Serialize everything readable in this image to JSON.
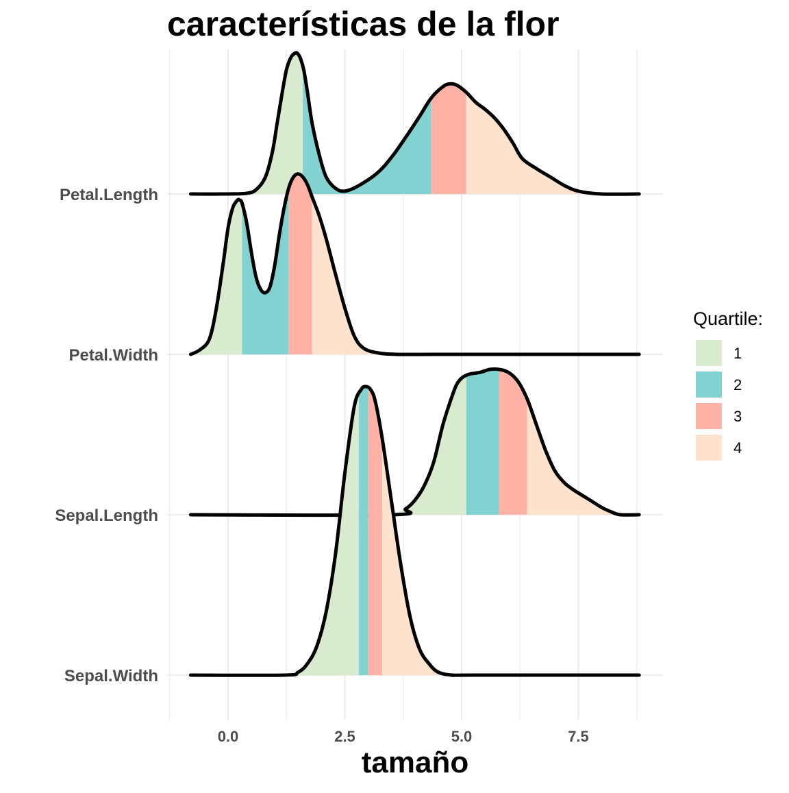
{
  "chart_data": {
    "type": "area",
    "subtype": "ridgeline density with quartile fills",
    "title": "características de la flor",
    "xlabel": "tamaño",
    "ylabel": "",
    "xlim": [
      -1.0,
      8.8
    ],
    "x_ticks": [
      0.0,
      2.5,
      5.0,
      7.5
    ],
    "x_tick_labels": [
      "0.0",
      "2.5",
      "5.0",
      "7.5"
    ],
    "grid": true,
    "legend": {
      "title": "Quartile:",
      "position": "right",
      "entries": [
        {
          "label": "1",
          "color": "#d9ebce"
        },
        {
          "label": "2",
          "color": "#83d2d2"
        },
        {
          "label": "3",
          "color": "#ffb3a7"
        },
        {
          "label": "4",
          "color": "#fde3ce"
        }
      ]
    },
    "series": [
      {
        "name": "Petal.Length",
        "quartiles": [
          1.6,
          4.35,
          5.1
        ],
        "x": [
          -0.8,
          0.0,
          0.4,
          0.6,
          0.8,
          0.95,
          1.05,
          1.15,
          1.25,
          1.35,
          1.45,
          1.5,
          1.55,
          1.62,
          1.7,
          1.8,
          1.95,
          2.1,
          2.3,
          2.5,
          2.8,
          3.2,
          3.5,
          3.8,
          4.1,
          4.35,
          4.6,
          4.75,
          4.9,
          5.1,
          5.3,
          5.5,
          5.7,
          5.9,
          6.1,
          6.3,
          6.6,
          6.9,
          7.2,
          7.5,
          8.0,
          8.8
        ],
        "density": [
          0.0,
          0.0,
          0.005,
          0.03,
          0.12,
          0.3,
          0.5,
          0.7,
          0.88,
          0.97,
          1.0,
          0.99,
          0.96,
          0.88,
          0.72,
          0.5,
          0.28,
          0.12,
          0.04,
          0.02,
          0.06,
          0.15,
          0.26,
          0.4,
          0.55,
          0.68,
          0.76,
          0.78,
          0.77,
          0.72,
          0.65,
          0.6,
          0.54,
          0.46,
          0.36,
          0.25,
          0.18,
          0.12,
          0.06,
          0.02,
          0.0,
          0.0
        ]
      },
      {
        "name": "Petal.Width",
        "quartiles": [
          0.3,
          1.3,
          1.8
        ],
        "x": [
          -0.8,
          -0.6,
          -0.4,
          -0.25,
          -0.1,
          0.0,
          0.1,
          0.2,
          0.25,
          0.3,
          0.4,
          0.5,
          0.6,
          0.7,
          0.8,
          0.9,
          1.0,
          1.1,
          1.2,
          1.3,
          1.4,
          1.5,
          1.6,
          1.7,
          1.8,
          1.95,
          2.1,
          2.3,
          2.5,
          2.7,
          2.9,
          3.2,
          3.6,
          4.5,
          6.0,
          8.8
        ],
        "density": [
          0.0,
          0.03,
          0.1,
          0.3,
          0.6,
          0.82,
          0.95,
          1.0,
          1.0,
          0.98,
          0.85,
          0.66,
          0.5,
          0.42,
          0.4,
          0.44,
          0.58,
          0.78,
          0.95,
          1.08,
          1.15,
          1.17,
          1.15,
          1.1,
          1.02,
          0.9,
          0.75,
          0.52,
          0.3,
          0.12,
          0.04,
          0.01,
          0.0,
          0.0,
          0.0,
          0.0
        ]
      },
      {
        "name": "Sepal.Length",
        "quartiles": [
          5.1,
          5.8,
          6.4
        ],
        "x": [
          -0.8,
          3.5,
          3.8,
          4.0,
          4.2,
          4.4,
          4.6,
          4.8,
          4.9,
          5.0,
          5.1,
          5.2,
          5.4,
          5.6,
          5.8,
          6.0,
          6.2,
          6.4,
          6.6,
          6.8,
          7.0,
          7.2,
          7.4,
          7.6,
          7.8,
          8.0,
          8.2,
          8.4,
          8.8
        ],
        "density": [
          0.0,
          0.0,
          0.04,
          0.1,
          0.2,
          0.36,
          0.62,
          0.82,
          0.9,
          0.94,
          0.96,
          0.97,
          0.98,
          1.0,
          1.0,
          0.98,
          0.92,
          0.8,
          0.62,
          0.44,
          0.3,
          0.22,
          0.17,
          0.13,
          0.09,
          0.05,
          0.02,
          0.0,
          0.0
        ]
      },
      {
        "name": "Sepal.Width",
        "quartiles": [
          2.8,
          3.0,
          3.3
        ],
        "x": [
          -0.8,
          1.2,
          1.5,
          1.7,
          1.9,
          2.1,
          2.3,
          2.5,
          2.7,
          2.85,
          2.95,
          3.05,
          3.15,
          3.3,
          3.5,
          3.7,
          3.9,
          4.1,
          4.3,
          4.5,
          4.8,
          5.2,
          8.8
        ],
        "density": [
          0.0,
          0.0,
          0.01,
          0.04,
          0.1,
          0.22,
          0.42,
          0.7,
          0.93,
          0.99,
          1.0,
          0.99,
          0.95,
          0.82,
          0.6,
          0.38,
          0.2,
          0.09,
          0.04,
          0.01,
          0.0,
          0.0,
          0.0
        ]
      }
    ]
  }
}
